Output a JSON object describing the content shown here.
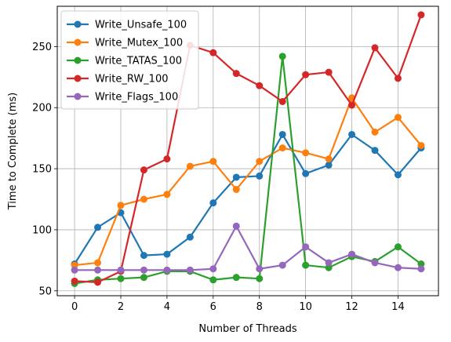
{
  "chart_data": {
    "type": "line",
    "title": "",
    "xlabel": "Number of Threads",
    "ylabel": "Time to Complete (ms)",
    "xlim": [
      -0.75,
      15.75
    ],
    "ylim": [
      46,
      283
    ],
    "xticks": [
      0,
      2,
      4,
      6,
      8,
      10,
      12,
      14
    ],
    "yticks": [
      50,
      100,
      150,
      200,
      250
    ],
    "grid": true,
    "legend_position": "upper-left",
    "x": [
      0,
      1,
      2,
      3,
      4,
      5,
      6,
      7,
      8,
      9,
      10,
      11,
      12,
      13,
      14,
      15
    ],
    "series": [
      {
        "name": "Write_Unsafe_100",
        "color": "#1f77b4",
        "values": [
          72,
          102,
          114,
          79,
          80,
          94,
          122,
          143,
          144,
          178,
          146,
          153,
          178,
          165,
          145,
          167
        ]
      },
      {
        "name": "Write_Mutex_100",
        "color": "#ff7f0e",
        "values": [
          71,
          73,
          120,
          125,
          129,
          152,
          156,
          133,
          156,
          167,
          163,
          158,
          208,
          180,
          192,
          169
        ]
      },
      {
        "name": "Write_TATAS_100",
        "color": "#2ca02c",
        "values": [
          56,
          59,
          60,
          61,
          66,
          66,
          59,
          61,
          60,
          242,
          71,
          69,
          78,
          74,
          86,
          72
        ]
      },
      {
        "name": "Write_RW_100",
        "color": "#d62728",
        "values": [
          58,
          57,
          66,
          149,
          158,
          251,
          245,
          228,
          218,
          205,
          227,
          229,
          202,
          249,
          224,
          276
        ]
      },
      {
        "name": "Write_Flags_100",
        "color": "#9467bd",
        "values": [
          67,
          67,
          67,
          67,
          67,
          67,
          68,
          103,
          68,
          71,
          86,
          73,
          80,
          73,
          69,
          68
        ]
      }
    ]
  }
}
